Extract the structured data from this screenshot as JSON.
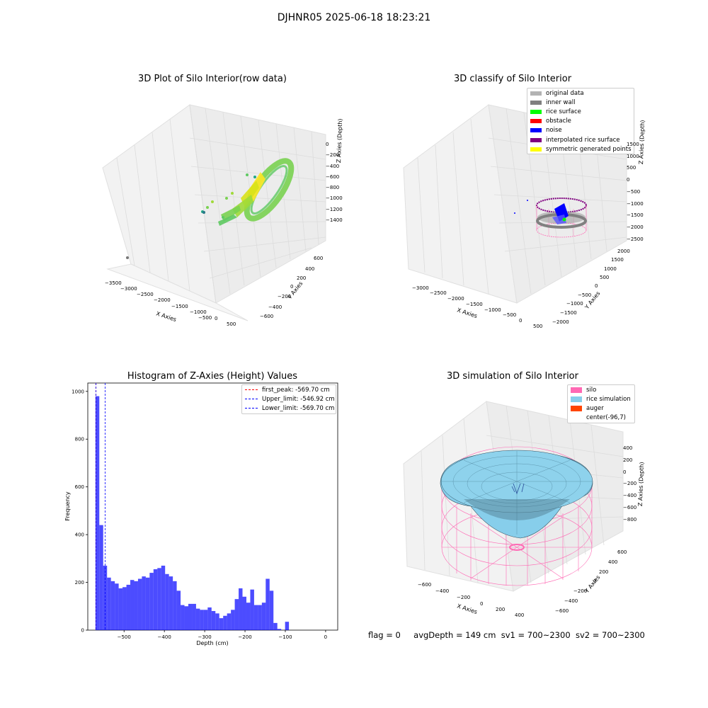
{
  "figure": {
    "suptitle": "DJHNR05 2025-06-18 18:23:21",
    "status_line": {
      "flag": "flag = 0",
      "avg_depth": "avgDepth = 149 cm",
      "sv1": "sv1 = 700~2300",
      "sv2": "sv2 = 700~2300"
    }
  },
  "panels": {
    "raw": {
      "title": "3D Plot of Silo Interior(row data)",
      "xlabel": "X Axies",
      "ylabel": "Y Axies",
      "zlabel": "Z Axies (Depth)",
      "xticks": [
        "−3500",
        "−3000",
        "−2500",
        "−2000",
        "−1500",
        "−1000",
        "−500",
        "0",
        "500"
      ],
      "yticks": [
        "600",
        "400",
        "200",
        "0",
        "−200",
        "−400",
        "−600"
      ],
      "zticks": [
        "0",
        "−200",
        "−400",
        "−600",
        "−800",
        "−1000",
        "−1200",
        "−1400"
      ],
      "colormap": [
        "#440154",
        "#21918c",
        "#7ad151",
        "#fde725"
      ]
    },
    "classify": {
      "title": "3D classify of Silo Interior",
      "xlabel": "X Axies",
      "ylabel": "Y Axies",
      "zlabel": "Z Axies (Depth)",
      "xticks": [
        "−3000",
        "−2500",
        "−2000",
        "−1500",
        "−1000",
        "−500",
        "0",
        "500"
      ],
      "yticks": [
        "2000",
        "1500",
        "1000",
        "500",
        "0",
        "−500",
        "−1000",
        "−1500",
        "−2000"
      ],
      "zticks": [
        "1500",
        "1000",
        "500",
        "0",
        "−500",
        "−1000",
        "−1500",
        "−2000",
        "−2500"
      ],
      "legend": [
        {
          "label": "original data",
          "color": "#b3b3b3"
        },
        {
          "label": "inner wall",
          "color": "#808080"
        },
        {
          "label": "rice surface",
          "color": "#00ff00"
        },
        {
          "label": "obstacle",
          "color": "#ff0000"
        },
        {
          "label": "noise",
          "color": "#0000ff"
        },
        {
          "label": "interpolated rice surface",
          "color": "#800080"
        },
        {
          "label": "symmetric generated points",
          "color": "#ffff00"
        }
      ]
    },
    "simulation": {
      "title": "3D simulation of Silo Interior",
      "xlabel": "X Axies",
      "ylabel": "Y Axies",
      "zlabel": "Z Axies (Depth)",
      "xticks": [
        "−600",
        "−400",
        "−200",
        "0",
        "200",
        "400"
      ],
      "yticks": [
        "600",
        "400",
        "200",
        "0",
        "−200",
        "−400",
        "−600"
      ],
      "zticks": [
        "400",
        "200",
        "0",
        "−200",
        "−400",
        "−600",
        "−800"
      ],
      "legend": [
        {
          "label": "silo",
          "color": "#ff69b4"
        },
        {
          "label": "rice simulation",
          "color": "#87ceeb"
        },
        {
          "label": "auger",
          "color": "#ff4500"
        },
        {
          "label": "center(-96,7)",
          "color": ""
        }
      ]
    }
  },
  "chart_data": {
    "type": "bar",
    "title": "Histogram of Z-Axies (Height) Values",
    "xlabel": "Depth (cm)",
    "ylabel": "Frequency",
    "xlim": [
      -590,
      30
    ],
    "ylim": [
      0,
      1035
    ],
    "bar_color": "#0000ff",
    "bin_edges_start": -571,
    "bin_width": 9.6,
    "values": [
      980,
      440,
      270,
      220,
      205,
      195,
      175,
      180,
      190,
      210,
      205,
      215,
      225,
      220,
      240,
      255,
      260,
      270,
      235,
      225,
      205,
      165,
      105,
      100,
      110,
      110,
      90,
      85,
      85,
      95,
      80,
      70,
      50,
      60,
      70,
      85,
      130,
      175,
      140,
      115,
      170,
      105,
      105,
      115,
      215,
      165,
      30,
      5,
      0,
      35
    ],
    "xticks": [
      -500,
      -400,
      -300,
      -200,
      -100,
      0
    ],
    "xtick_labels": [
      "−500",
      "−400",
      "−300",
      "−200",
      "−100",
      "0"
    ],
    "yticks": [
      0,
      200,
      400,
      600,
      800,
      1000
    ],
    "ytick_labels": [
      "0",
      "200",
      "400",
      "600",
      "800",
      "1000"
    ],
    "vlines": [
      {
        "label": "first_peak: -569.70 cm",
        "x": -569.7,
        "color": "#ff0000"
      },
      {
        "label": "Upper_limit: -546.92 cm",
        "x": -546.92,
        "color": "#0000ff"
      },
      {
        "label": "Lower_limit: -569.70 cm",
        "x": -569.7,
        "color": "#0000ff"
      }
    ],
    "legend_loc": "upper right"
  }
}
